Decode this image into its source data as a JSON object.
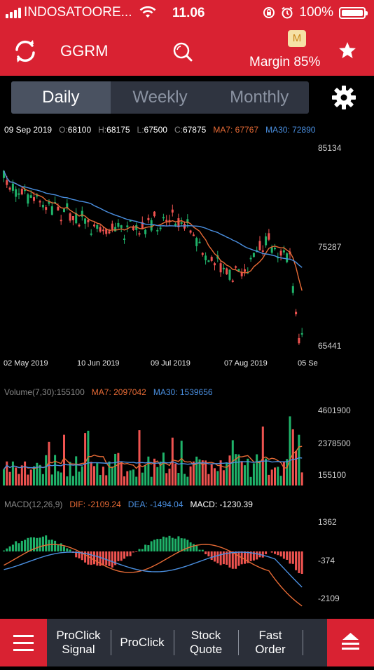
{
  "status": {
    "carrier": "INDOSATOORE...",
    "time": "11.06",
    "battery": "100%"
  },
  "header": {
    "symbol": "GGRM",
    "badge": "M",
    "margin": "Margin 85%"
  },
  "tabs": [
    "Daily",
    "Weekly",
    "Monthly"
  ],
  "active_tab": "Daily",
  "info": {
    "date": "09 Sep 2019",
    "o_label": "O:",
    "o": "68100",
    "h_label": "H:",
    "h": "68175",
    "l_label": "L:",
    "l": "67500",
    "c_label": "C:",
    "c": "67875",
    "ma7": "MA7: 67767",
    "ma30": "MA30: 72890"
  },
  "price_axis": [
    "85134",
    "75287",
    "65441"
  ],
  "dates": [
    "02 May 2019",
    "10 Jun 2019",
    "09 Jul 2019",
    "07 Aug 2019",
    "05 Se"
  ],
  "volume": {
    "title": "Volume(7,30):155100",
    "ma7": "MA7: 2097042",
    "ma30": "MA30: 1539656",
    "axis": [
      "4601900",
      "2378500",
      "155100"
    ]
  },
  "macd": {
    "title": "MACD(12,26,9)",
    "dif": "DIF: -2109.24",
    "dea": "DEA: -1494.04",
    "macd": "MACD: -1230.39",
    "axis": [
      "1362",
      "-374",
      "-2109"
    ]
  },
  "bottom": {
    "items": [
      "ProClick\nSignal",
      "ProClick",
      "Stock\nQuote",
      "Fast\nOrder"
    ],
    "item1_l1": "ProClick",
    "item1_l2": "Signal",
    "item2": "ProClick",
    "item3_l1": "Stock",
    "item3_l2": "Quote",
    "item4_l1": "Fast",
    "item4_l2": "Order"
  },
  "colors": {
    "accent": "#d92232",
    "up": "#1fb36a",
    "down": "#ef5350",
    "ma7": "#e66a35",
    "ma30": "#4a8fe0"
  },
  "icons": [
    "signal-icon",
    "wifi-icon",
    "lock-rotation-icon",
    "alarm-icon",
    "battery-icon",
    "refresh-icon",
    "search-icon",
    "star-icon",
    "gear-icon",
    "menu-icon",
    "scroll-up-icon"
  ]
}
